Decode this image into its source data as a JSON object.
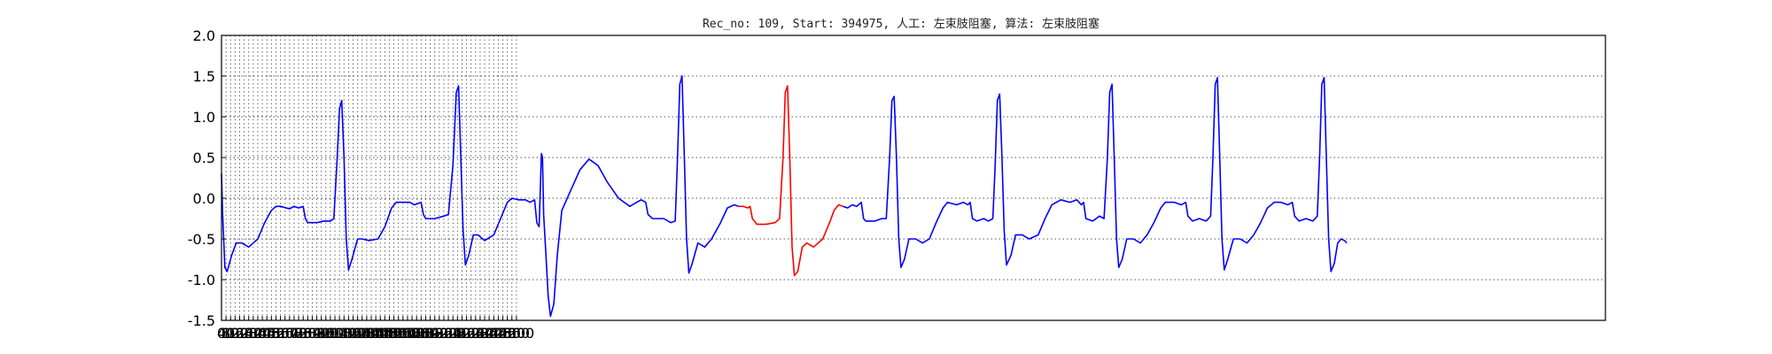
{
  "chart_data": {
    "type": "line",
    "title": "Rec_no: 109, Start: 394975, 人工: 左束肢阻塞, 算法: 左束肢阻塞",
    "xlabel": "",
    "ylabel": "",
    "xlim": [
      0,
      6100
    ],
    "ylim": [
      -1.5,
      2.0
    ],
    "grid": true,
    "xticks": [
      "0",
      "40",
      "80",
      "120",
      "160",
      "200",
      "240",
      "280",
      "320",
      "360",
      "400",
      "440",
      "480",
      "520",
      "560",
      "600",
      "640",
      "680",
      "720",
      "760",
      "800",
      "840",
      "880",
      "920",
      "960",
      "1000",
      "1040",
      "1080",
      "1120",
      "1160",
      "1200",
      "1240",
      "1280",
      "1320",
      "1360",
      "1400",
      "1440",
      "1480",
      "1520",
      "1560",
      "1600",
      "1640",
      "1680",
      "1720",
      "1760",
      "1800",
      "1840",
      "1880",
      "1920",
      "1960",
      "2000",
      "2040",
      "2080",
      "2120",
      "2160",
      "2200",
      "2240",
      "2280",
      "2320",
      "2360",
      "2400",
      "2440",
      "2480",
      "2520",
      "2560",
      "2600"
    ],
    "yticks": [
      "-1.5",
      "-1.0",
      "-0.5",
      "0.0",
      "0.5",
      "1.0",
      "1.5",
      "2.0"
    ],
    "series": [
      {
        "color": "#0000ff",
        "points": [
          [
            0,
            0.3
          ],
          [
            5,
            -0.2
          ],
          [
            15,
            -0.85
          ],
          [
            25,
            -0.9
          ],
          [
            45,
            -0.7
          ],
          [
            65,
            -0.55
          ],
          [
            90,
            -0.55
          ],
          [
            120,
            -0.6
          ],
          [
            160,
            -0.5
          ],
          [
            190,
            -0.3
          ],
          [
            220,
            -0.15
          ],
          [
            240,
            -0.1
          ],
          [
            260,
            -0.1
          ],
          [
            300,
            -0.13
          ],
          [
            320,
            -0.1
          ],
          [
            340,
            -0.12
          ],
          [
            360,
            -0.1
          ],
          [
            370,
            -0.25
          ],
          [
            380,
            -0.3
          ],
          [
            420,
            -0.3
          ],
          [
            450,
            -0.28
          ],
          [
            480,
            -0.28
          ],
          [
            495,
            -0.25
          ],
          [
            510,
            0.5
          ],
          [
            520,
            1.1
          ],
          [
            530,
            1.2
          ],
          [
            540,
            0.5
          ],
          [
            550,
            -0.5
          ],
          [
            560,
            -0.88
          ],
          [
            575,
            -0.75
          ],
          [
            600,
            -0.5
          ],
          [
            620,
            -0.5
          ],
          [
            650,
            -0.52
          ],
          [
            690,
            -0.5
          ],
          [
            720,
            -0.35
          ],
          [
            750,
            -0.12
          ],
          [
            770,
            -0.05
          ],
          [
            800,
            -0.05
          ],
          [
            830,
            -0.05
          ],
          [
            850,
            -0.08
          ],
          [
            880,
            -0.05
          ],
          [
            890,
            -0.2
          ],
          [
            900,
            -0.25
          ],
          [
            940,
            -0.25
          ],
          [
            980,
            -0.22
          ],
          [
            1000,
            -0.2
          ],
          [
            1020,
            0.4
          ],
          [
            1035,
            1.3
          ],
          [
            1045,
            1.38
          ],
          [
            1055,
            0.5
          ],
          [
            1065,
            -0.4
          ],
          [
            1075,
            -0.82
          ],
          [
            1090,
            -0.7
          ],
          [
            1110,
            -0.45
          ],
          [
            1130,
            -0.45
          ],
          [
            1160,
            -0.52
          ],
          [
            1200,
            -0.45
          ],
          [
            1230,
            -0.25
          ],
          [
            1260,
            -0.05
          ],
          [
            1280,
            0.0
          ],
          [
            1310,
            -0.02
          ],
          [
            1340,
            -0.02
          ],
          [
            1360,
            -0.05
          ],
          [
            1380,
            -0.02
          ],
          [
            1390,
            -0.3
          ],
          [
            1400,
            -0.35
          ],
          [
            1410,
            0.55
          ],
          [
            1415,
            0.5
          ],
          [
            1420,
            -0.2
          ],
          [
            1430,
            -0.7
          ],
          [
            1440,
            -1.2
          ],
          [
            1450,
            -1.45
          ],
          [
            1465,
            -1.3
          ],
          [
            1480,
            -0.7
          ],
          [
            1500,
            -0.15
          ],
          [
            1540,
            0.1
          ],
          [
            1580,
            0.35
          ],
          [
            1620,
            0.48
          ],
          [
            1660,
            0.4
          ],
          [
            1700,
            0.2
          ],
          [
            1750,
            0.0
          ],
          [
            1800,
            -0.1
          ],
          [
            1830,
            -0.05
          ],
          [
            1850,
            -0.02
          ],
          [
            1870,
            -0.05
          ],
          [
            1880,
            -0.2
          ],
          [
            1900,
            -0.25
          ],
          [
            1950,
            -0.25
          ],
          [
            1980,
            -0.3
          ],
          [
            2000,
            -0.28
          ],
          [
            2010,
            0.5
          ],
          [
            2020,
            1.4
          ],
          [
            2030,
            1.5
          ],
          [
            2040,
            0.5
          ],
          [
            2050,
            -0.5
          ],
          [
            2060,
            -0.92
          ],
          [
            2075,
            -0.8
          ],
          [
            2100,
            -0.55
          ],
          [
            2130,
            -0.6
          ],
          [
            2160,
            -0.5
          ],
          [
            2200,
            -0.3
          ],
          [
            2230,
            -0.12
          ],
          [
            2260,
            -0.08
          ],
          [
            2280,
            -0.1
          ]
        ]
      },
      {
        "color": "#ff0000",
        "points": [
          [
            2280,
            -0.1
          ],
          [
            2300,
            -0.1
          ],
          [
            2320,
            -0.12
          ],
          [
            2330,
            -0.1
          ],
          [
            2340,
            -0.25
          ],
          [
            2360,
            -0.32
          ],
          [
            2400,
            -0.32
          ],
          [
            2440,
            -0.3
          ],
          [
            2460,
            -0.25
          ],
          [
            2475,
            0.5
          ],
          [
            2485,
            1.3
          ],
          [
            2495,
            1.38
          ],
          [
            2505,
            0.5
          ],
          [
            2515,
            -0.6
          ],
          [
            2525,
            -0.95
          ],
          [
            2540,
            -0.9
          ],
          [
            2560,
            -0.6
          ],
          [
            2580,
            -0.55
          ],
          [
            2610,
            -0.6
          ],
          [
            2650,
            -0.5
          ],
          [
            2680,
            -0.3
          ],
          [
            2700,
            -0.15
          ],
          [
            2720,
            -0.08
          ],
          [
            2740,
            -0.1
          ]
        ]
      },
      {
        "color": "#0000ff",
        "points": [
          [
            2740,
            -0.1
          ],
          [
            2760,
            -0.12
          ],
          [
            2780,
            -0.08
          ],
          [
            2800,
            -0.1
          ],
          [
            2820,
            -0.05
          ],
          [
            2830,
            -0.25
          ],
          [
            2840,
            -0.28
          ],
          [
            2880,
            -0.28
          ],
          [
            2910,
            -0.25
          ],
          [
            2930,
            -0.25
          ],
          [
            2945,
            0.5
          ],
          [
            2955,
            1.2
          ],
          [
            2965,
            1.25
          ],
          [
            2975,
            0.5
          ],
          [
            2985,
            -0.5
          ],
          [
            2995,
            -0.85
          ],
          [
            3010,
            -0.75
          ],
          [
            3030,
            -0.5
          ],
          [
            3060,
            -0.5
          ],
          [
            3090,
            -0.55
          ],
          [
            3120,
            -0.5
          ],
          [
            3150,
            -0.3
          ],
          [
            3180,
            -0.12
          ],
          [
            3200,
            -0.05
          ],
          [
            3240,
            -0.08
          ],
          [
            3270,
            -0.05
          ],
          [
            3290,
            -0.08
          ],
          [
            3300,
            -0.05
          ],
          [
            3310,
            -0.25
          ],
          [
            3330,
            -0.28
          ],
          [
            3360,
            -0.25
          ],
          [
            3380,
            -0.28
          ],
          [
            3400,
            -0.25
          ],
          [
            3410,
            0.4
          ],
          [
            3420,
            1.2
          ],
          [
            3430,
            1.28
          ],
          [
            3440,
            0.5
          ],
          [
            3450,
            -0.4
          ],
          [
            3460,
            -0.82
          ],
          [
            3480,
            -0.7
          ],
          [
            3500,
            -0.45
          ],
          [
            3530,
            -0.45
          ],
          [
            3560,
            -0.5
          ],
          [
            3600,
            -0.45
          ],
          [
            3630,
            -0.25
          ],
          [
            3660,
            -0.08
          ],
          [
            3700,
            -0.02
          ],
          [
            3740,
            -0.05
          ],
          [
            3770,
            -0.02
          ],
          [
            3790,
            -0.08
          ],
          [
            3800,
            -0.05
          ],
          [
            3810,
            -0.25
          ],
          [
            3840,
            -0.28
          ],
          [
            3870,
            -0.22
          ],
          [
            3890,
            -0.25
          ],
          [
            3905,
            0.5
          ],
          [
            3915,
            1.3
          ],
          [
            3925,
            1.4
          ],
          [
            3935,
            0.5
          ],
          [
            3945,
            -0.5
          ],
          [
            3955,
            -0.85
          ],
          [
            3970,
            -0.75
          ],
          [
            3990,
            -0.5
          ],
          [
            4020,
            -0.5
          ],
          [
            4050,
            -0.55
          ],
          [
            4080,
            -0.45
          ],
          [
            4110,
            -0.3
          ],
          [
            4140,
            -0.12
          ],
          [
            4160,
            -0.05
          ],
          [
            4200,
            -0.05
          ],
          [
            4230,
            -0.08
          ],
          [
            4250,
            -0.05
          ],
          [
            4260,
            -0.22
          ],
          [
            4280,
            -0.28
          ],
          [
            4310,
            -0.25
          ],
          [
            4340,
            -0.28
          ],
          [
            4360,
            -0.22
          ],
          [
            4370,
            0.5
          ],
          [
            4380,
            1.4
          ],
          [
            4390,
            1.48
          ],
          [
            4400,
            0.5
          ],
          [
            4410,
            -0.5
          ],
          [
            4420,
            -0.88
          ],
          [
            4435,
            -0.75
          ],
          [
            4460,
            -0.5
          ],
          [
            4490,
            -0.5
          ],
          [
            4520,
            -0.55
          ],
          [
            4550,
            -0.45
          ],
          [
            4580,
            -0.3
          ],
          [
            4610,
            -0.12
          ],
          [
            4640,
            -0.05
          ],
          [
            4670,
            -0.05
          ],
          [
            4700,
            -0.08
          ],
          [
            4720,
            -0.05
          ],
          [
            4730,
            -0.22
          ],
          [
            4750,
            -0.28
          ],
          [
            4780,
            -0.25
          ],
          [
            4810,
            -0.28
          ],
          [
            4830,
            -0.22
          ],
          [
            4840,
            0.5
          ],
          [
            4850,
            1.4
          ],
          [
            4860,
            1.48
          ],
          [
            4870,
            0.5
          ],
          [
            4880,
            -0.5
          ],
          [
            4890,
            -0.9
          ],
          [
            4905,
            -0.8
          ],
          [
            4920,
            -0.55
          ],
          [
            4935,
            -0.5
          ],
          [
            4950,
            -0.52
          ],
          [
            4960,
            -0.55
          ]
        ]
      }
    ]
  }
}
